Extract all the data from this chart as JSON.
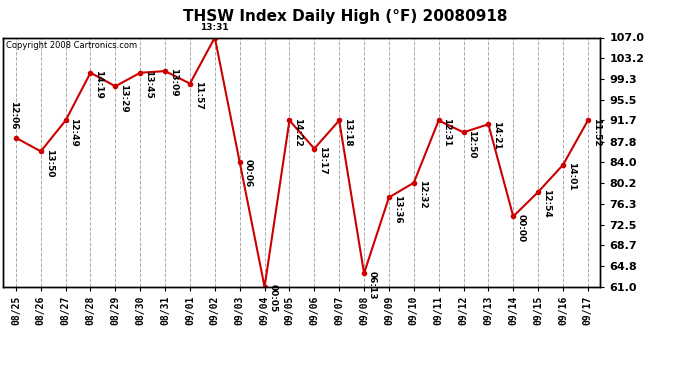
{
  "title": "THSW Index Daily High (°F) 20080918",
  "copyright": "Copyright 2008 Cartronics.com",
  "background_color": "#ffffff",
  "plot_background": "#ffffff",
  "grid_color": "#aaaaaa",
  "line_color": "#cc0000",
  "marker_color": "#cc0000",
  "dates": [
    "08/25",
    "08/26",
    "08/27",
    "08/28",
    "08/29",
    "08/30",
    "08/31",
    "09/01",
    "09/02",
    "09/03",
    "09/04",
    "09/05",
    "09/06",
    "09/07",
    "09/08",
    "09/09",
    "09/10",
    "09/11",
    "09/12",
    "09/13",
    "09/14",
    "09/15",
    "09/16",
    "09/17"
  ],
  "values": [
    88.5,
    86.0,
    91.7,
    100.5,
    98.0,
    100.5,
    100.8,
    98.5,
    107.0,
    84.0,
    61.0,
    91.7,
    86.5,
    91.7,
    63.5,
    77.5,
    80.2,
    91.7,
    89.5,
    91.0,
    74.0,
    78.5,
    83.5,
    91.7
  ],
  "labels": [
    "12:06",
    "13:50",
    "12:49",
    "14:19",
    "13:29",
    "13:45",
    "13:09",
    "11:57",
    "13:31",
    "00:06",
    "00:05",
    "14:22",
    "13:17",
    "13:18",
    "06:13",
    "13:36",
    "12:32",
    "12:31",
    "12:50",
    "14:21",
    "00:00",
    "12:54",
    "14:01",
    "11:52"
  ],
  "ytick_values": [
    61.0,
    64.8,
    68.7,
    72.5,
    76.3,
    80.2,
    84.0,
    87.8,
    91.7,
    95.5,
    99.3,
    103.2,
    107.0
  ],
  "ytick_labels": [
    "61.0",
    "64.8",
    "68.7",
    "72.5",
    "76.3",
    "80.2",
    "84.0",
    "87.8",
    "91.7",
    "95.5",
    "99.3",
    "103.2",
    "107.0"
  ],
  "ylim_min": 61.0,
  "ylim_max": 107.0,
  "title_fontsize": 11,
  "label_fontsize": 6.5,
  "xtick_fontsize": 7,
  "ytick_fontsize": 8
}
